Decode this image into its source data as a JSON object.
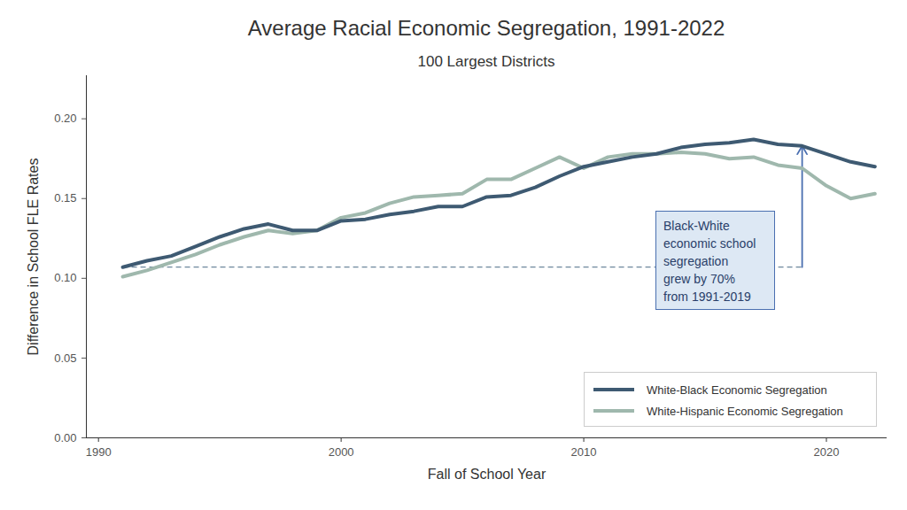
{
  "chart_data": {
    "type": "line",
    "title": "Average Racial Economic Segregation, 1991-2022",
    "subtitle": "100 Largest Districts",
    "x_label": "Fall of School Year",
    "y_label": "Difference in School FLE Rates",
    "x": [
      1991,
      1992,
      1993,
      1994,
      1995,
      1996,
      1997,
      1998,
      1999,
      2000,
      2001,
      2002,
      2003,
      2004,
      2005,
      2006,
      2007,
      2008,
      2009,
      2010,
      2011,
      2012,
      2013,
      2014,
      2015,
      2016,
      2017,
      2018,
      2019,
      2020,
      2021,
      2022
    ],
    "series": [
      {
        "name": "White-Black Economic Segregation",
        "color": "#3e5a72",
        "values": [
          0.107,
          0.111,
          0.114,
          0.12,
          0.126,
          0.131,
          0.134,
          0.13,
          0.13,
          0.136,
          0.137,
          0.14,
          0.142,
          0.145,
          0.145,
          0.151,
          0.152,
          0.157,
          0.164,
          0.17,
          0.173,
          0.176,
          0.178,
          0.182,
          0.184,
          0.185,
          0.187,
          0.184,
          0.183,
          0.178,
          0.173,
          0.17
        ]
      },
      {
        "name": "White-Hispanic Economic Segregation",
        "color": "#9fb8ad",
        "values": [
          0.101,
          0.105,
          0.11,
          0.115,
          0.121,
          0.126,
          0.13,
          0.128,
          0.13,
          0.138,
          0.141,
          0.147,
          0.151,
          0.152,
          0.153,
          0.162,
          0.162,
          0.169,
          0.176,
          0.169,
          0.176,
          0.178,
          0.178,
          0.179,
          0.178,
          0.175,
          0.176,
          0.171,
          0.169,
          0.158,
          0.15,
          0.153
        ]
      }
    ],
    "xlim": [
      1989.5,
      2022.5
    ],
    "ylim": [
      0,
      0.227
    ],
    "xticks": [
      1990,
      2000,
      2010,
      2020
    ],
    "yticks": [
      {
        "value": 0,
        "label": "0.00"
      },
      {
        "value": 0.05,
        "label": "0.05"
      },
      {
        "value": 0.1,
        "label": "0.10"
      },
      {
        "value": 0.15,
        "label": "0.15"
      },
      {
        "value": 0.2,
        "label": "0.20"
      }
    ],
    "grid": false,
    "legend": "lower right",
    "annotation": {
      "text": [
        "Black-White",
        "economic school",
        "segregation",
        "grew by 70%",
        "from 1991-2019"
      ],
      "x_start": 1991,
      "x_end": 2019
    }
  }
}
